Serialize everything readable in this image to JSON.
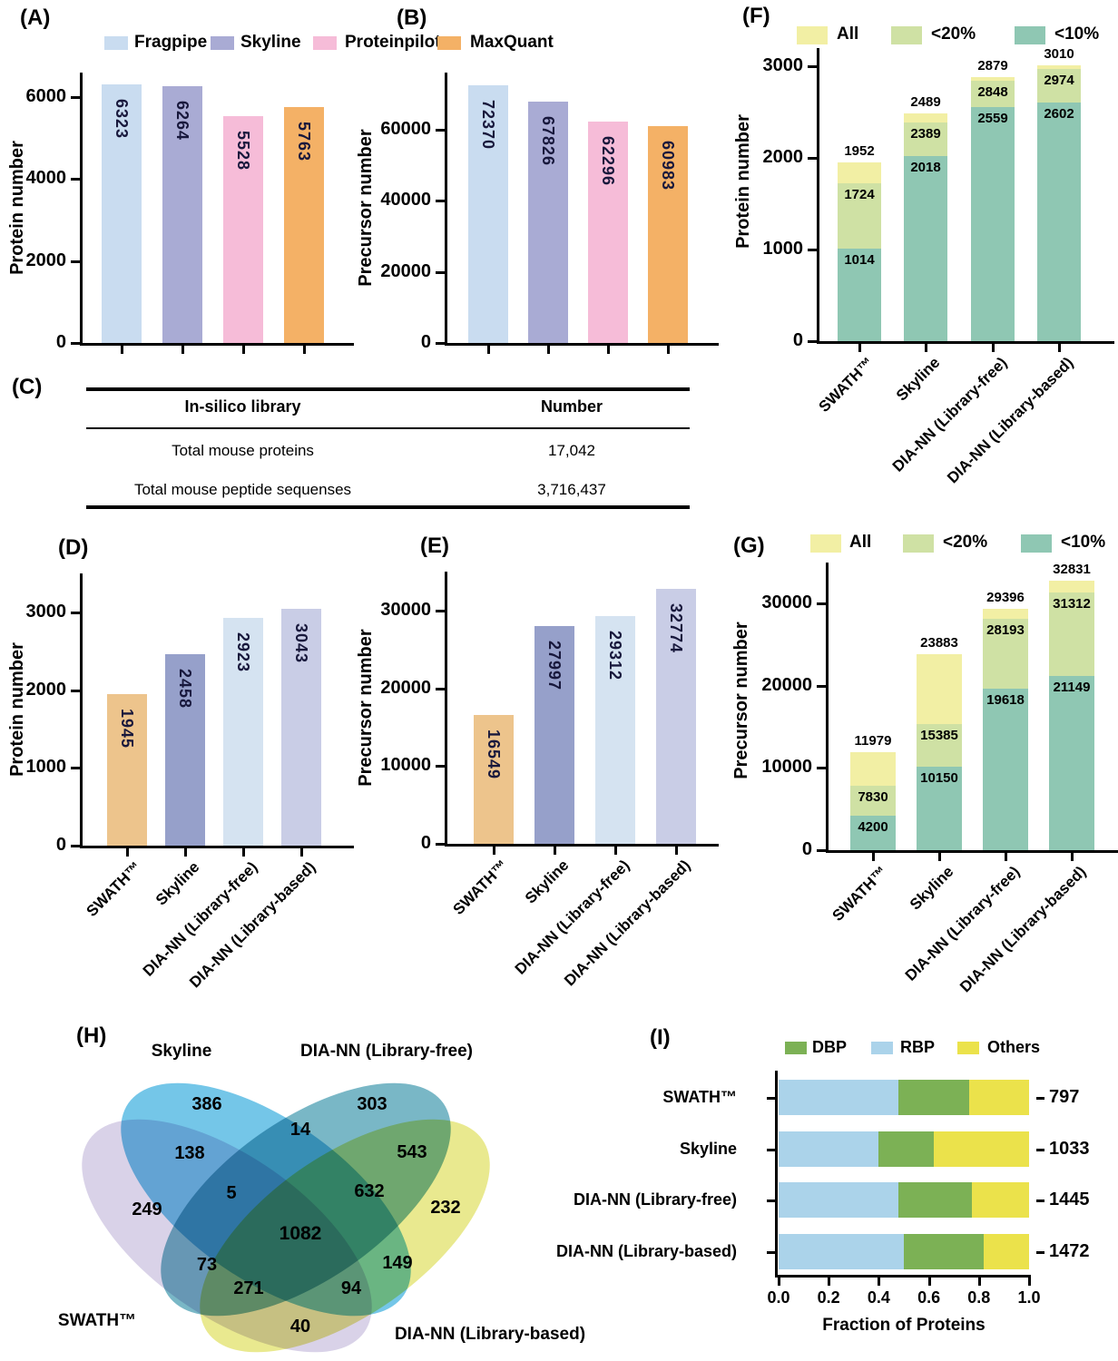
{
  "panels": {
    "a": "(A)",
    "b": "(B)",
    "c": "(C)",
    "d": "(D)",
    "e": "(E)",
    "f": "(F)",
    "g": "(G)",
    "h": "(H)",
    "i": "(I)"
  },
  "colors": {
    "fragpipe": "#c9dcf0",
    "skyline_ab": "#a9abd4",
    "proteinpilot": "#f6bcd8",
    "maxquant": "#f4b166",
    "swath_de": "#edc48c",
    "skyline_de": "#96a0ca",
    "lf_de": "#d5e3f1",
    "lb_de": "#c9cde6",
    "all": "#f2efa4",
    "lt20": "#cfe1a4",
    "lt10": "#8fc7b3",
    "dbp": "#7cb155",
    "rbp": "#abd3ea",
    "others": "#ebe24b",
    "venn_swath": "#d9d2e8",
    "venn_skyline": "#74c6e8",
    "venn_lf": "#79b7c6",
    "venn_lb": "#e9e98f",
    "bar_value_text": "#18183c",
    "axis": "#000000"
  },
  "legend_ab": {
    "items": [
      {
        "label": "Fragpipe",
        "color_key": "fragpipe"
      },
      {
        "label": "Skyline",
        "color_key": "skyline_ab"
      },
      {
        "label": "Proteinpilot",
        "color_key": "proteinpilot"
      },
      {
        "label": "MaxQuant",
        "color_key": "maxquant"
      }
    ]
  },
  "table_c": {
    "headers": [
      "In-silico library",
      "Number"
    ],
    "rows": [
      [
        "Total mouse proteins",
        "17,042"
      ],
      [
        "Total mouse peptide sequenses",
        "3,716,437"
      ]
    ]
  },
  "chart_data": [
    {
      "id": "A",
      "type": "bar",
      "title": "",
      "ylabel": "Protein number",
      "xlabel": "",
      "categories": [
        "Fragpipe",
        "Skyline",
        "Proteinpilot",
        "MaxQuant"
      ],
      "values": [
        6323,
        6264,
        5528,
        5763
      ],
      "colors": [
        "#c9dcf0",
        "#a9abd4",
        "#f6bcd8",
        "#f4b166"
      ],
      "yticks": [
        0,
        2000,
        4000,
        6000
      ],
      "ymax": 6600,
      "x_labels_visible": false,
      "grid": false
    },
    {
      "id": "B",
      "type": "bar",
      "title": "",
      "ylabel": "Precursor number",
      "xlabel": "",
      "categories": [
        "Fragpipe",
        "Skyline",
        "Proteinpilot",
        "MaxQuant"
      ],
      "values": [
        72370,
        67826,
        62296,
        60983
      ],
      "colors": [
        "#c9dcf0",
        "#a9abd4",
        "#f6bcd8",
        "#f4b166"
      ],
      "yticks": [
        0,
        20000,
        40000,
        60000
      ],
      "ymax": 76000,
      "x_labels_visible": false,
      "grid": false
    },
    {
      "id": "D",
      "type": "bar",
      "title": "",
      "ylabel": "Protein number",
      "xlabel": "",
      "categories": [
        "SWATH™",
        "Skyline",
        "DIA-NN (Library-free)",
        "DIA-NN (Library-based)"
      ],
      "values": [
        1945,
        2458,
        2923,
        3043
      ],
      "colors": [
        "#edc48c",
        "#96a0ca",
        "#d5e3f1",
        "#c9cde6"
      ],
      "yticks": [
        0,
        1000,
        2000,
        3000
      ],
      "ymax": 3500,
      "x_labels_visible": true,
      "grid": false
    },
    {
      "id": "E",
      "type": "bar",
      "title": "",
      "ylabel": "Precursor number",
      "xlabel": "",
      "categories": [
        "SWATH™",
        "Skyline",
        "DIA-NN (Library-free)",
        "DIA-NN (Library-based)"
      ],
      "values": [
        16549,
        27997,
        29312,
        32774
      ],
      "colors": [
        "#edc48c",
        "#96a0ca",
        "#d5e3f1",
        "#c9cde6"
      ],
      "yticks": [
        0,
        10000,
        20000,
        30000
      ],
      "ymax": 35000,
      "x_labels_visible": true,
      "grid": false
    },
    {
      "id": "F",
      "type": "stacked_bar",
      "title": "",
      "ylabel": "Protein number",
      "xlabel": "",
      "categories": [
        "SWATH™",
        "Skyline",
        "DIA-NN (Library-free)",
        "DIA-NN (Library-based)"
      ],
      "legend": [
        "All",
        "<20%",
        "<10%"
      ],
      "series": [
        {
          "name": "All",
          "values": [
            1952,
            2489,
            2879,
            3010
          ]
        },
        {
          "name": "<20%",
          "values": [
            1724,
            2389,
            2848,
            2974
          ]
        },
        {
          "name": "<10%",
          "values": [
            1014,
            2018,
            2559,
            2602
          ]
        }
      ],
      "series_colors": [
        "#f2efa4",
        "#cfe1a4",
        "#8fc7b3"
      ],
      "yticks": [
        0,
        1000,
        2000,
        3000
      ],
      "ymax": 3200,
      "legend_position": "top",
      "grid": false
    },
    {
      "id": "G",
      "type": "stacked_bar",
      "title": "",
      "ylabel": "Precursor number",
      "xlabel": "",
      "categories": [
        "SWATH™",
        "Skyline",
        "DIA-NN (Library-free)",
        "DIA-NN (Library-based)"
      ],
      "legend": [
        "All",
        "<20%",
        "<10%"
      ],
      "series": [
        {
          "name": "All",
          "values": [
            11979,
            23883,
            29396,
            32831
          ]
        },
        {
          "name": "<20%",
          "values": [
            7830,
            15385,
            28193,
            31312
          ]
        },
        {
          "name": "<10%",
          "values": [
            4200,
            10150,
            19618,
            21149
          ]
        }
      ],
      "series_colors": [
        "#f2efa4",
        "#cfe1a4",
        "#8fc7b3"
      ],
      "yticks": [
        0,
        10000,
        20000,
        30000
      ],
      "ymax": 35000,
      "legend_position": "top",
      "grid": false
    },
    {
      "id": "H",
      "type": "venn4",
      "title": "",
      "sets": [
        "SWATH™",
        "Skyline",
        "DIA-NN (Library-free)",
        "DIA-NN (Library-based)"
      ],
      "set_colors": [
        "#d9d2e8",
        "#74c6e8",
        "#79b7c6",
        "#e9e98f"
      ],
      "regions": [
        {
          "key": "A",
          "sets": "SWATH only",
          "value": 249
        },
        {
          "key": "B",
          "sets": "Skyline only",
          "value": 386
        },
        {
          "key": "C",
          "sets": "DIA-NN (Library-free) only",
          "value": 303
        },
        {
          "key": "D",
          "sets": "DIA-NN (Library-based) only",
          "value": 232
        },
        {
          "key": "AB",
          "sets": "SWATH ∩ Skyline",
          "value": 138
        },
        {
          "key": "AC",
          "sets": "SWATH ∩ Library-free",
          "value": 271
        },
        {
          "key": "AD",
          "sets": "SWATH ∩ Library-based",
          "value": 40
        },
        {
          "key": "BC",
          "sets": "Skyline ∩ Library-free",
          "value": 14
        },
        {
          "key": "BD",
          "sets": "Skyline ∩ Library-based",
          "value": 94
        },
        {
          "key": "CD",
          "sets": "Library-free ∩ Library-based",
          "value": 543
        },
        {
          "key": "ABC",
          "sets": "SWATH ∩ Skyline ∩ Library-free",
          "value": 5
        },
        {
          "key": "ABD",
          "sets": "SWATH ∩ Skyline ∩ Library-based",
          "value": 73
        },
        {
          "key": "ACD",
          "sets": "SWATH ∩ Library-free ∩ Library-based",
          "value": 149
        },
        {
          "key": "BCD",
          "sets": "Skyline ∩ Library-free ∩ Library-based",
          "value": 632
        },
        {
          "key": "ABCD",
          "sets": "all four",
          "value": 1082
        }
      ]
    },
    {
      "id": "I",
      "type": "h_stacked_bar",
      "title": "",
      "xlabel": "Fraction of Proteins",
      "categories": [
        "SWATH™",
        "Skyline",
        "DIA-NN (Library-free)",
        "DIA-NN (Library-based)"
      ],
      "legend": [
        "DBP",
        "RBP",
        "Others"
      ],
      "legend_colors": [
        "#7cb155",
        "#abd3ea",
        "#ebe24b"
      ],
      "series": [
        {
          "name": "RBP",
          "color": "#abd3ea",
          "values": [
            0.48,
            0.4,
            0.48,
            0.5
          ]
        },
        {
          "name": "DBP",
          "color": "#7cb155",
          "values": [
            0.28,
            0.22,
            0.29,
            0.32
          ]
        },
        {
          "name": "Others",
          "color": "#ebe24b",
          "values": [
            0.24,
            0.38,
            0.23,
            0.18
          ]
        }
      ],
      "totals": [
        797,
        1033,
        1445,
        1472
      ],
      "xticks": [
        "0.0",
        "0.2",
        "0.4",
        "0.6",
        "0.8",
        "1.0"
      ],
      "xlim": [
        0,
        1
      ],
      "legend_position": "top",
      "grid": false
    }
  ]
}
